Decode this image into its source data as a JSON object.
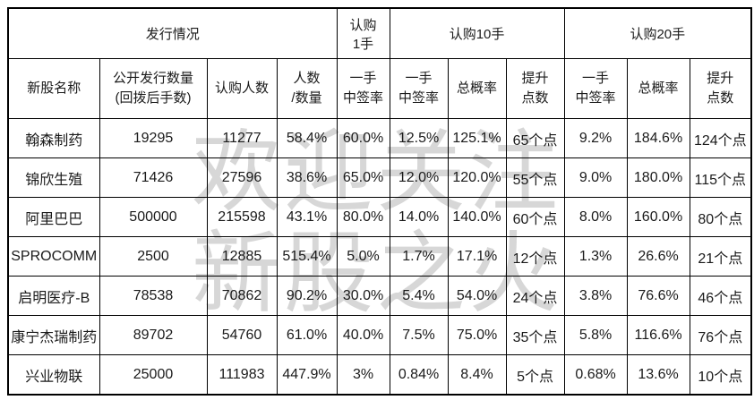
{
  "header": {
    "group_issue": "发行情况",
    "group_buy1": "认购\n1手",
    "group_buy10": "认购10手",
    "group_buy20": "认购20手",
    "cols": [
      "新股名称",
      "公开发行数量\n(回拨后手数)",
      "认购人数",
      "人数\n/数量",
      "一手\n中签率",
      "一手\n中签率",
      "总概率",
      "提升\n点数",
      "一手\n中签率",
      "总概率",
      "提升\n点数"
    ]
  },
  "rows": [
    {
      "cells": [
        "翰森制药",
        "19295",
        "11277",
        "58.4%",
        "60.0%",
        "12.5%",
        "125.1%",
        "65个点",
        "9.2%",
        "184.6%",
        "124个点"
      ],
      "red_indices": []
    },
    {
      "cells": [
        "锦欣生殖",
        "71426",
        "27596",
        "38.6%",
        "65.0%",
        "12.0%",
        "120.0%",
        "55个点",
        "9.0%",
        "180.0%",
        "115个点"
      ],
      "red_indices": []
    },
    {
      "cells": [
        "阿里巴巴",
        "500000",
        "215598",
        "43.1%",
        "80.0%",
        "14.0%",
        "140.0%",
        "60个点",
        "8.0%",
        "160.0%",
        "80个点"
      ],
      "red_indices": []
    },
    {
      "cells": [
        "SPROCOMM",
        "2500",
        "12885",
        "515.4%",
        "5.0%",
        "1.7%",
        "17.1%",
        "12个点",
        "1.3%",
        "26.6%",
        "21个点"
      ],
      "red_indices": [
        3,
        4
      ]
    },
    {
      "cells": [
        "启明医疗-B",
        "78538",
        "70862",
        "90.2%",
        "30.0%",
        "5.4%",
        "54.0%",
        "24个点",
        "3.8%",
        "76.6%",
        "46个点"
      ],
      "red_indices": []
    },
    {
      "cells": [
        "康宁杰瑞制药",
        "89702",
        "54760",
        "61.0%",
        "40.0%",
        "7.5%",
        "75.0%",
        "35个点",
        "5.8%",
        "116.6%",
        "76个点"
      ],
      "red_indices": []
    },
    {
      "cells": [
        "兴业物联",
        "25000",
        "111983",
        "447.9%",
        "3%",
        "0.84%",
        "8.4%",
        "5个点",
        "0.68%",
        "13.6%",
        "10个点"
      ],
      "red_indices": [
        3,
        4
      ]
    }
  ],
  "watermark": {
    "line1": "欢迎关注",
    "line2": "新股之火"
  },
  "colors": {
    "highlight": "#ff0000",
    "text": "#1a1a1a",
    "border": "#000000",
    "watermark": "#d7d7d7"
  }
}
